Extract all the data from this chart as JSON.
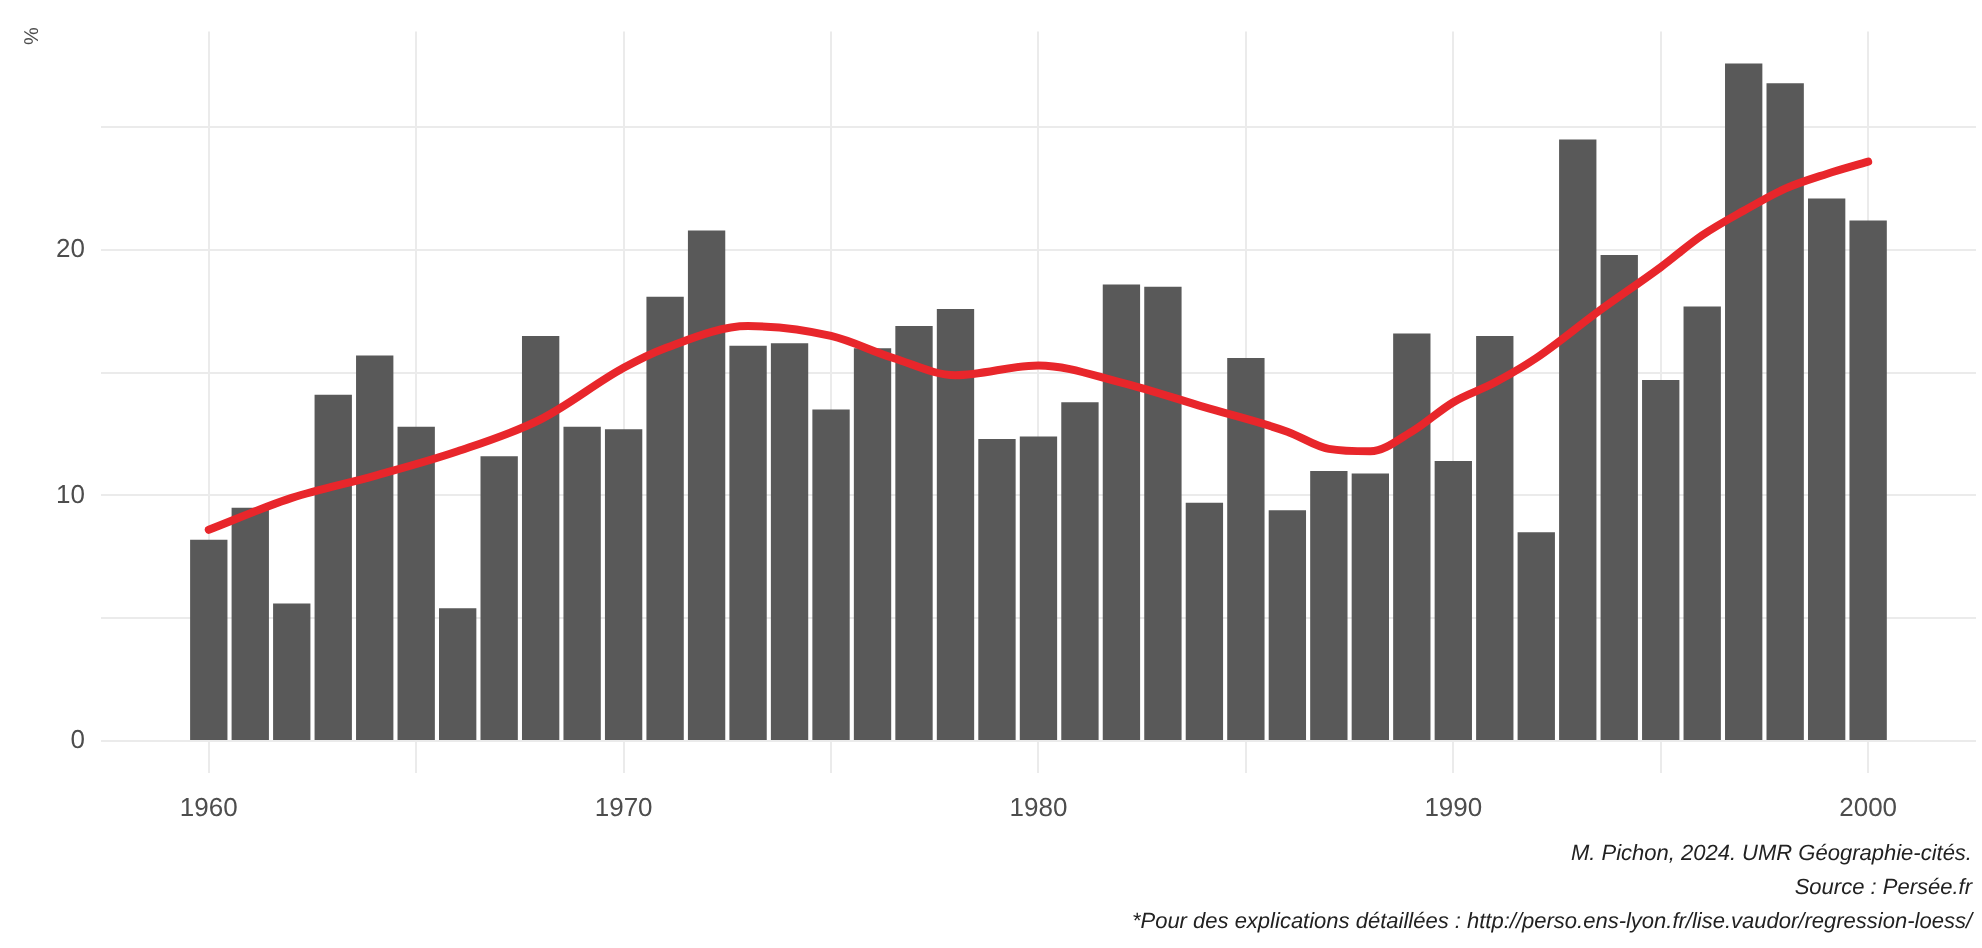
{
  "chart_data": {
    "type": "bar",
    "ylabel": "%",
    "x": [
      1960,
      1961,
      1962,
      1963,
      1964,
      1965,
      1966,
      1967,
      1968,
      1969,
      1970,
      1971,
      1972,
      1973,
      1974,
      1975,
      1976,
      1977,
      1978,
      1979,
      1980,
      1981,
      1982,
      1983,
      1984,
      1985,
      1986,
      1987,
      1988,
      1989,
      1990,
      1991,
      1992,
      1993,
      1994,
      1995,
      1996,
      1997,
      1998,
      1999,
      2000
    ],
    "series": [
      {
        "color": "#595959",
        "values": [
          8.2,
          9.5,
          5.6,
          14.1,
          15.7,
          12.8,
          5.4,
          11.6,
          16.5,
          12.8,
          12.7,
          18.1,
          20.8,
          16.1,
          16.2,
          13.5,
          16.0,
          16.9,
          17.6,
          12.3,
          12.4,
          13.8,
          18.6,
          18.5,
          9.7,
          15.6,
          9.4,
          11.0,
          10.9,
          16.6,
          11.4,
          16.5,
          8.5,
          24.5,
          19.8,
          14.7,
          17.7,
          27.6,
          26.8,
          22.1,
          21.2
        ]
      },
      {
        "type": "line",
        "color": "#e8262b",
        "x": [
          1960,
          1962,
          1964,
          1966,
          1968,
          1970,
          1971,
          1973,
          1975,
          1976.5,
          1978,
          1980,
          1982,
          1984,
          1986,
          1987,
          1988,
          1989,
          1990,
          1991,
          1992,
          1993.5,
          1995,
          1996,
          1997,
          1998,
          1999,
          2000
        ],
        "values": [
          8.6,
          9.9,
          10.8,
          11.8,
          13.1,
          15.2,
          16.0,
          16.9,
          16.5,
          15.6,
          14.9,
          15.3,
          14.6,
          13.6,
          12.6,
          11.9,
          11.8,
          12.6,
          13.8,
          14.6,
          15.6,
          17.5,
          19.3,
          20.6,
          21.6,
          22.5,
          23.1,
          23.6
        ]
      }
    ],
    "xlim": [
      1957.4,
      2002.6
    ],
    "xticks": [
      1960,
      {
        "value": 1965,
        "label": null
      },
      1970,
      {
        "value": 1975,
        "label": null
      },
      1980,
      {
        "value": 1985,
        "label": null
      },
      1990,
      {
        "value": 1995,
        "label": null
      },
      2000
    ],
    "ylim": [
      -1.3,
      28.9
    ],
    "yticks": [
      0,
      {
        "value": 5,
        "label": null
      },
      10,
      {
        "value": 15,
        "label": null
      },
      20,
      {
        "value": 25,
        "label": null
      }
    ],
    "grid": true,
    "legend": false,
    "marker": "none",
    "line_style": "solid",
    "annotations": [
      "M. Pichon, 2024. UMR Géographie-cités.",
      "Source : Persée.fr",
      "*Pour des explications détaillées : http://perso.ens-lyon.fr/lise.vaudor/regression-loess/"
    ]
  }
}
